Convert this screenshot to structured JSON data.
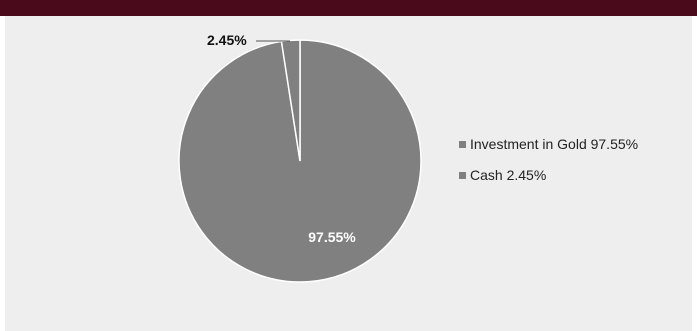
{
  "chart_data": {
    "type": "pie",
    "slices": [
      {
        "label": "Investment in Gold",
        "value": 97.55,
        "display": "97.55%",
        "color": "#808080"
      },
      {
        "label": "Cash",
        "value": 2.45,
        "display": "2.45%",
        "color": "#808080"
      }
    ],
    "legend": {
      "position": "right",
      "entries": [
        {
          "text": "Investment in Gold  97.55%"
        },
        {
          "text": "Cash  2.45%"
        }
      ]
    }
  },
  "colors": {
    "top_bar": "#4a0a1c",
    "panel_background": "#eeeeee",
    "slice_fill": "#808080",
    "slice_border": "#ffffff"
  }
}
